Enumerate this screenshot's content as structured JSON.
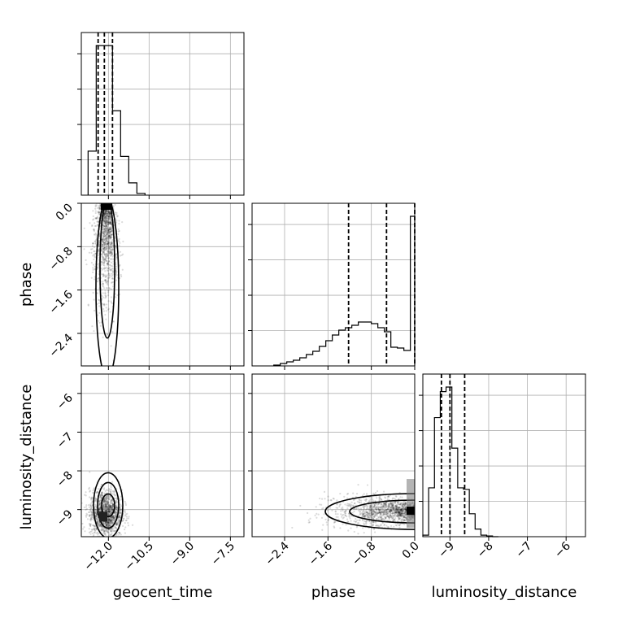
{
  "chart_data": {
    "type": "corner",
    "parameters": [
      "geocent_time",
      "phase",
      "luminosity_distance"
    ],
    "axes": {
      "geocent_time": {
        "range": [
          -13.0,
          -7.0
        ],
        "ticks": [
          -12.0,
          -10.5,
          -9.0,
          -7.5
        ],
        "tick_labels": [
          "−12.0",
          "−10.5",
          "−9.0",
          "−7.5"
        ],
        "label": "geocent_time"
      },
      "phase": {
        "range": [
          -3.0,
          0.0
        ],
        "ticks": [
          -2.4,
          -1.6,
          -0.8,
          0.0
        ],
        "tick_labels": [
          "−2.4",
          "−1.6",
          "−0.8",
          "0.0"
        ],
        "label": "phase"
      },
      "luminosity_distance": {
        "range": [
          -9.7,
          -5.5
        ],
        "ticks": [
          -9,
          -8,
          -7,
          -6
        ],
        "tick_labels": [
          "−9",
          "−8",
          "−7",
          "−6"
        ],
        "label": "luminosity_distance"
      }
    },
    "histograms": {
      "geocent_time": {
        "bin_edges": [
          -12.75,
          -12.45,
          -12.15,
          -11.85,
          -11.55,
          -11.25,
          -10.95,
          -10.65
        ],
        "counts": [
          0.25,
          0.85,
          0.85,
          0.48,
          0.22,
          0.07,
          0.01
        ],
        "quantiles": [
          -12.38,
          -12.15,
          -11.85
        ]
      },
      "phase": {
        "bin_edges": [
          -2.6,
          -2.48,
          -2.36,
          -2.24,
          -2.12,
          -2.0,
          -1.88,
          -1.76,
          -1.64,
          -1.52,
          -1.4,
          -1.28,
          -1.16,
          -1.04,
          -0.92,
          -0.8,
          -0.68,
          -0.56,
          -0.44,
          -0.32,
          -0.2,
          -0.08,
          0.0
        ],
        "counts": [
          0.005,
          0.015,
          0.025,
          0.035,
          0.05,
          0.07,
          0.09,
          0.12,
          0.155,
          0.19,
          0.22,
          0.235,
          0.25,
          0.27,
          0.27,
          0.26,
          0.235,
          0.21,
          0.115,
          0.11,
          0.095,
          0.92
        ],
        "quantiles": [
          -1.22,
          -0.52,
          0.0
        ]
      },
      "luminosity_distance": {
        "bin_edges": [
          -9.7,
          -9.55,
          -9.4,
          -9.25,
          -9.1,
          -8.95,
          -8.8,
          -8.65,
          -8.5,
          -8.35,
          -8.2,
          -8.05,
          -7.9,
          -7.75
        ],
        "counts": [
          0.01,
          0.32,
          0.78,
          0.95,
          0.98,
          0.58,
          0.32,
          0.31,
          0.15,
          0.05,
          0.01,
          0.005,
          0.0
        ],
        "quantiles": [
          -9.22,
          -9.0,
          -8.62
        ]
      }
    },
    "scatter_summary": {
      "phase_vs_geocent_time": {
        "center": [
          -12.1,
          -0.8
        ],
        "spread": [
          0.25,
          0.6
        ]
      },
      "luminosity_distance_vs_geocent_time": {
        "center": [
          -12.1,
          -9.1
        ],
        "spread": [
          0.3,
          0.3
        ]
      },
      "luminosity_distance_vs_phase": {
        "center": [
          -0.7,
          -9.05
        ],
        "spread": [
          0.55,
          0.22
        ]
      }
    }
  }
}
